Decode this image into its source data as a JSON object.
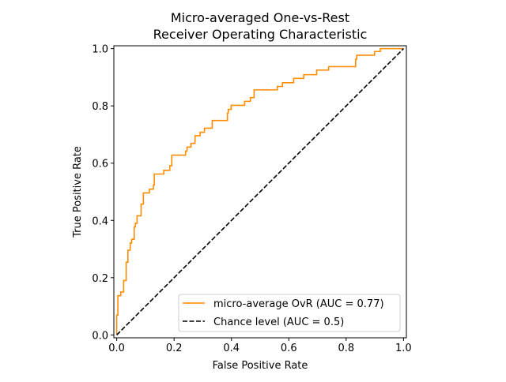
{
  "chart_data": {
    "type": "line",
    "title": [
      "Micro-averaged One-vs-Rest",
      "Receiver Operating Characteristic"
    ],
    "xlabel": "False Positive Rate",
    "ylabel": "True Positive Rate",
    "xlim": [
      -0.01,
      1.01
    ],
    "ylim": [
      -0.01,
      1.01
    ],
    "xticks": [
      0.0,
      0.2,
      0.4,
      0.6,
      0.8,
      1.0
    ],
    "yticks": [
      0.0,
      0.2,
      0.4,
      0.6,
      0.8,
      1.0
    ],
    "tick_labels": [
      "0.0",
      "0.2",
      "0.4",
      "0.6",
      "0.8",
      "1.0"
    ],
    "grid": false,
    "legend_position": "lower-right",
    "series": [
      {
        "name": "micro-average OvR (AUC = 0.77)",
        "color": "#ff8c00",
        "style": "step",
        "fpr": [
          0,
          0,
          0.004,
          0.014,
          0.024,
          0.033,
          0.039,
          0.047,
          0.052,
          0.061,
          0.065,
          0.071,
          0.085,
          0.093,
          0.114,
          0.128,
          0.131,
          0.164,
          0.185,
          0.192,
          0.24,
          0.245,
          0.259,
          0.273,
          0.291,
          0.306,
          0.333,
          0.386,
          0.389,
          0.399,
          0.446,
          0.466,
          0.479,
          0.56,
          0.578,
          0.617,
          0.652,
          0.697,
          0.739,
          0.833,
          0.837,
          0.899,
          0.919,
          1.0
        ],
        "tpr": [
          0,
          0.069,
          0.137,
          0.15,
          0.19,
          0.254,
          0.296,
          0.321,
          0.334,
          0.377,
          0.39,
          0.416,
          0.457,
          0.496,
          0.509,
          0.524,
          0.562,
          0.575,
          0.591,
          0.628,
          0.642,
          0.656,
          0.669,
          0.696,
          0.708,
          0.722,
          0.749,
          0.775,
          0.788,
          0.802,
          0.816,
          0.829,
          0.856,
          0.868,
          0.881,
          0.896,
          0.909,
          0.925,
          0.937,
          0.963,
          0.977,
          0.99,
          1.0,
          1.0
        ]
      },
      {
        "name": "Chance level (AUC = 0.5)",
        "color": "#000000",
        "style": "dashed",
        "fpr": [
          0,
          1
        ],
        "tpr": [
          0,
          1
        ]
      }
    ]
  }
}
